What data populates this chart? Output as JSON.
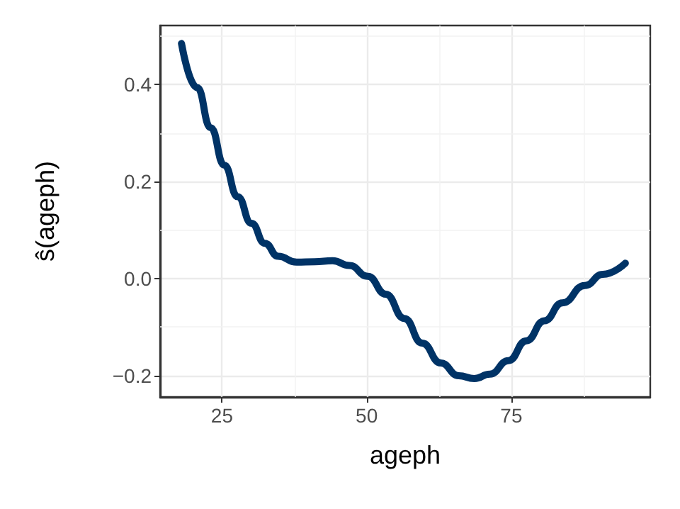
{
  "chart_data": {
    "type": "line",
    "xlabel": "ageph",
    "ylabel": "ŝ(ageph)",
    "xlim": [
      14.3,
      99
    ],
    "xticks": [
      25,
      50,
      75
    ],
    "ylim": [
      -0.244,
      0.522
    ],
    "yticks": [
      -0.2,
      {
        "value": 0,
        "label": "0.0"
      },
      0.2,
      0.4
    ],
    "grid": true,
    "marker": "none",
    "line_style": "solid",
    "series": [
      {
        "color": "#003366",
        "x": [
          18,
          20.7,
          23.05,
          25.4,
          27.7,
          30.1,
          32.4,
          34.7,
          37.9,
          41,
          44.1,
          47,
          50.2,
          53.3,
          56.5,
          59.6,
          62.8,
          65.9,
          68.6,
          71.3,
          74.5,
          77.6,
          80.7,
          83.8,
          87.7,
          90.8,
          94.7
        ],
        "values": [
          0.485,
          0.394,
          0.311,
          0.234,
          0.169,
          0.114,
          0.073,
          0.046,
          0.034,
          0.035,
          0.037,
          0.027,
          0.005,
          -0.032,
          -0.082,
          -0.133,
          -0.174,
          -0.2,
          -0.206,
          -0.197,
          -0.169,
          -0.128,
          -0.087,
          -0.05,
          -0.014,
          0.009,
          0.032
        ]
      }
    ]
  }
}
